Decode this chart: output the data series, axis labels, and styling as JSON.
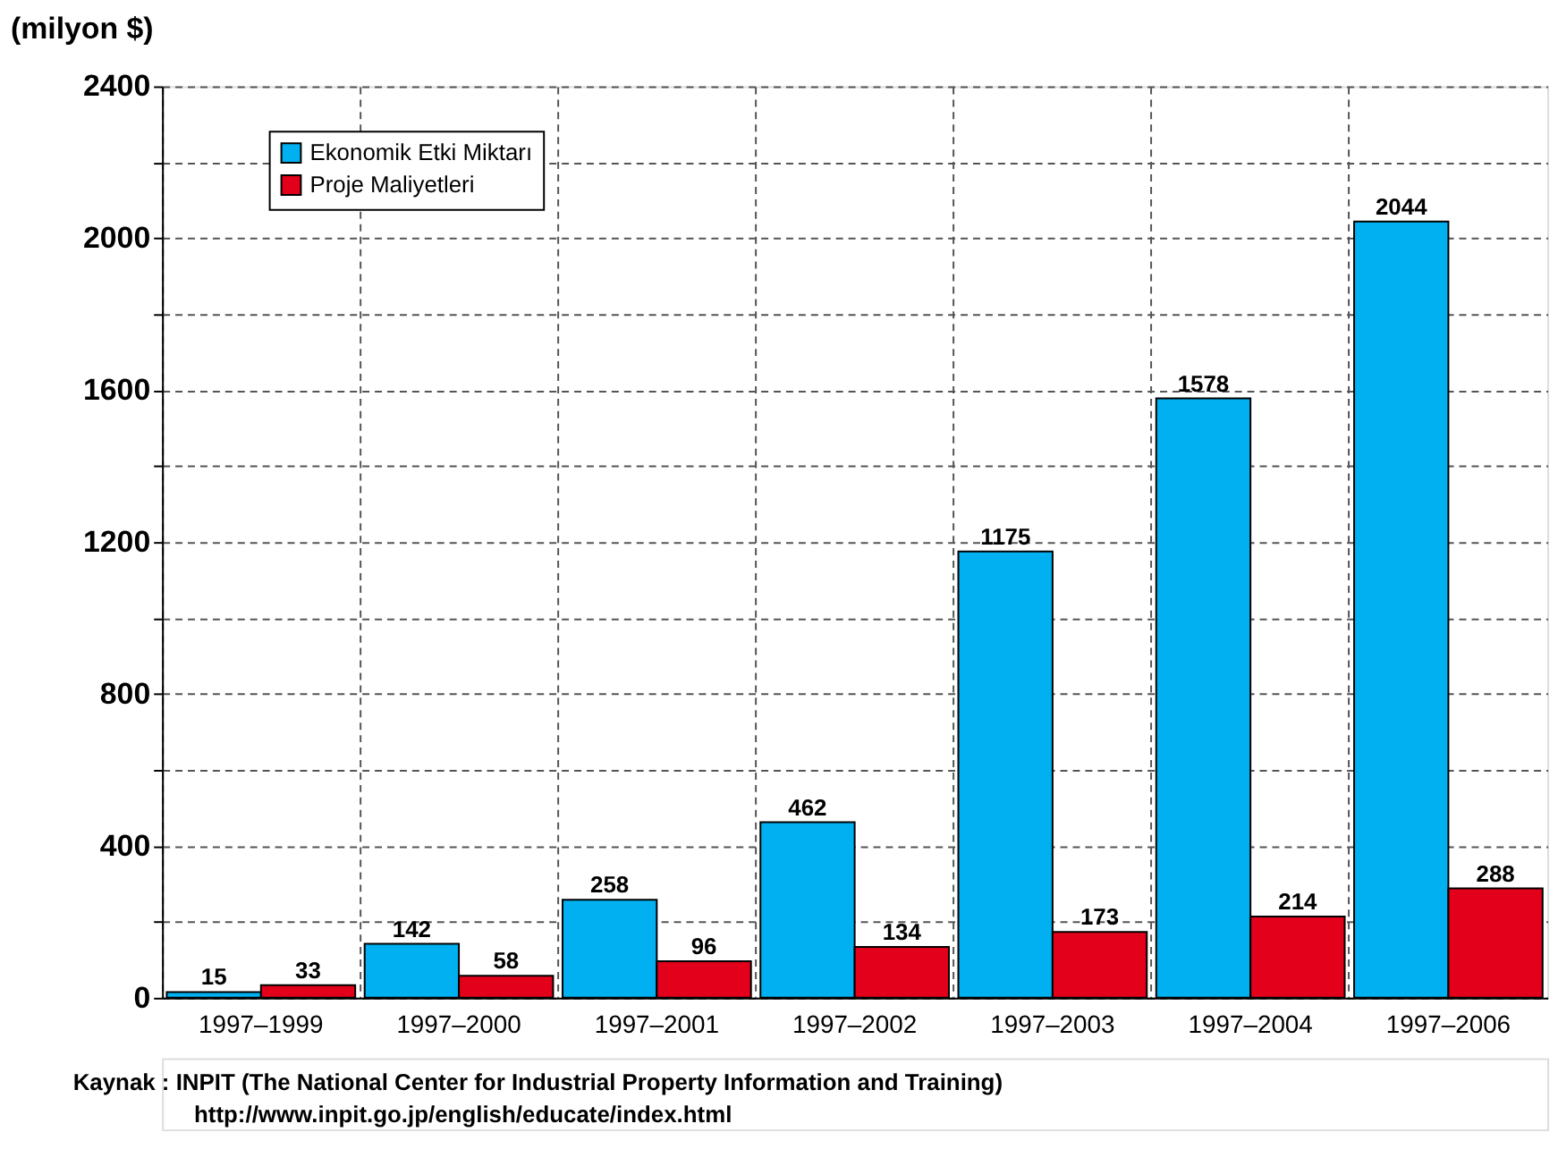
{
  "chart_data": {
    "type": "bar",
    "ylabel": "(milyon $)",
    "categories": [
      "1997–1999",
      "1997–2000",
      "1997–2001",
      "1997–2002",
      "1997–2003",
      "1997–2004",
      "1997–2006"
    ],
    "series": [
      {
        "name": "Ekonomik Etki Miktarı",
        "color": "#00b0f0",
        "values": [
          15,
          142,
          258,
          462,
          1175,
          1578,
          2044
        ]
      },
      {
        "name": "Proje Maliyetleri",
        "color": "#e2001a",
        "values": [
          33,
          58,
          96,
          134,
          173,
          214,
          288
        ]
      }
    ],
    "ylim": [
      0,
      2400
    ],
    "yticks": [
      0,
      {
        "value": 200,
        "label": null
      },
      400,
      {
        "value": 600,
        "label": null
      },
      800,
      {
        "value": 1000,
        "label": null
      },
      1200,
      {
        "value": 1400,
        "label": null
      },
      1600,
      {
        "value": 1800,
        "label": null
      },
      2000,
      {
        "value": 2200,
        "label": null
      },
      2400
    ],
    "grid": true,
    "legend": "top left",
    "data_labels": true,
    "annotations": [
      "Kaynak : INPIT (The National Center for Industrial Property Information and Training)",
      "http://www.inpit.go.jp/english/educate/index.html"
    ]
  }
}
